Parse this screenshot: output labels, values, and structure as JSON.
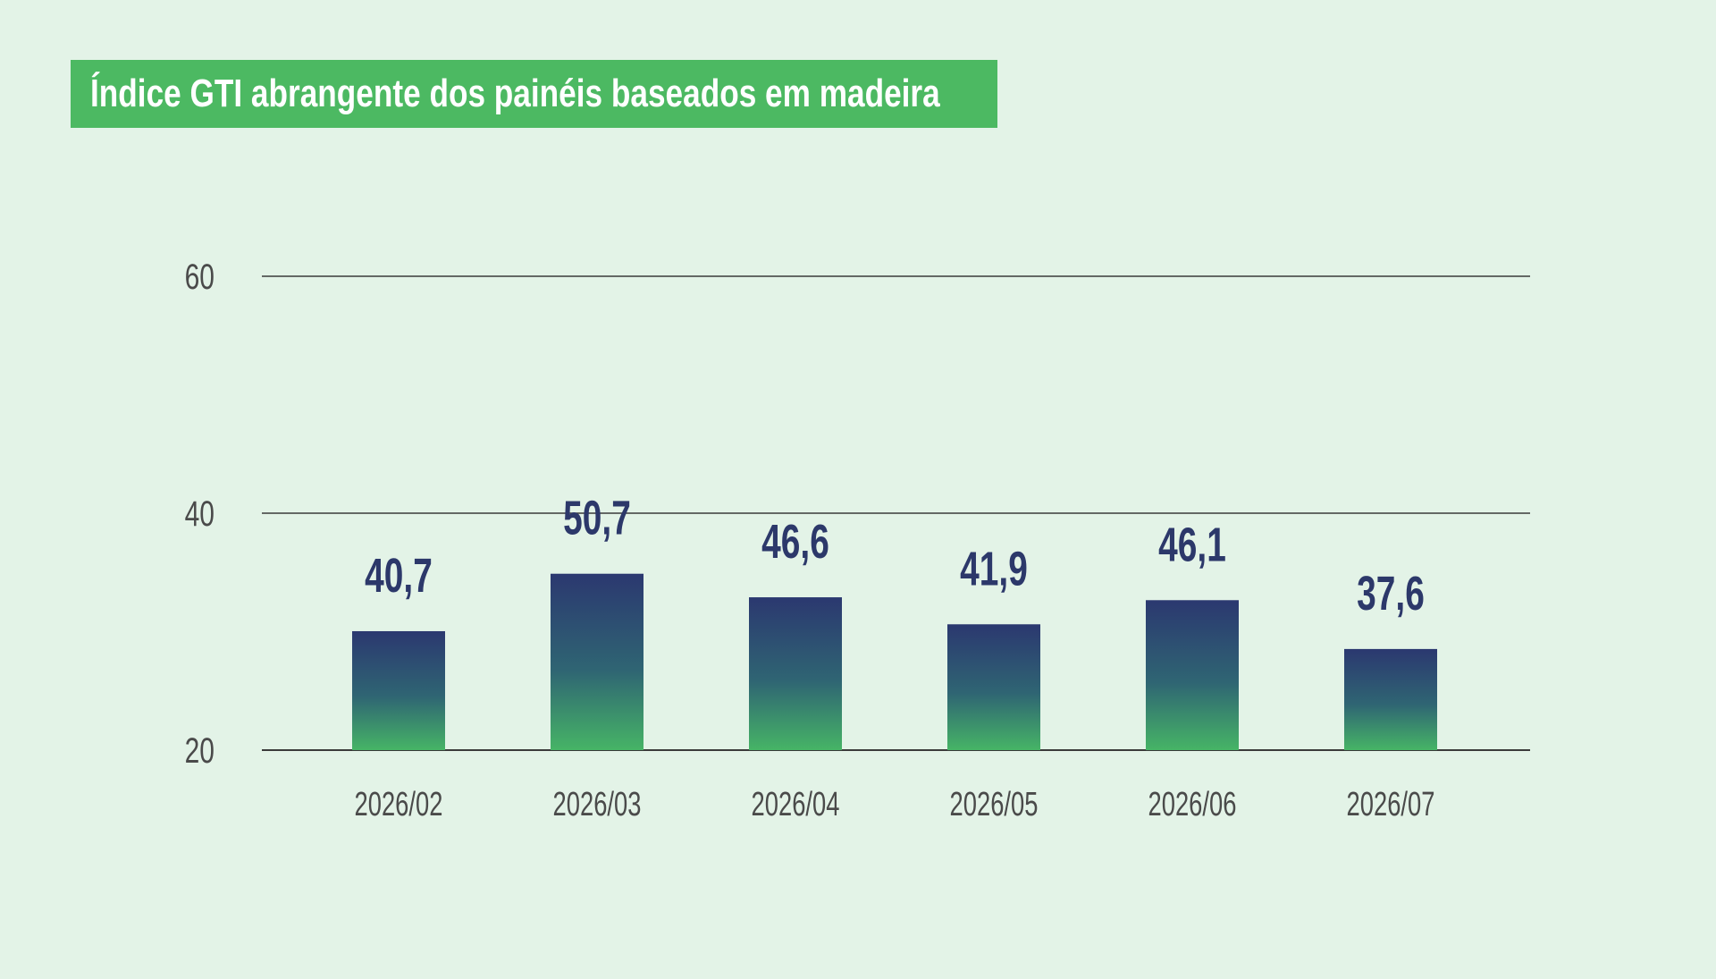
{
  "chart_data": {
    "type": "bar",
    "title": "Índice GTI abrangente dos painéis baseados em madeira",
    "categories": [
      "2026/02",
      "2026/03",
      "2026/04",
      "2026/05",
      "2026/06",
      "2026/07"
    ],
    "values": [
      40.7,
      50.7,
      46.6,
      41.9,
      46.1,
      37.6
    ],
    "value_labels": [
      "40,7",
      "50,7",
      "46,6",
      "41,9",
      "46,1",
      "37,6"
    ],
    "yticks": [
      20,
      40,
      60
    ],
    "ytick_labels": [
      "20",
      "40",
      "60"
    ],
    "xlabel": "",
    "ylabel": "",
    "grid": true,
    "colors": {
      "bar_top": "#2b3870",
      "bar_bottom": "#46b466",
      "value_text": "#2c386a",
      "title_bg": "#4cb962",
      "background": "#e3f3e7"
    }
  }
}
